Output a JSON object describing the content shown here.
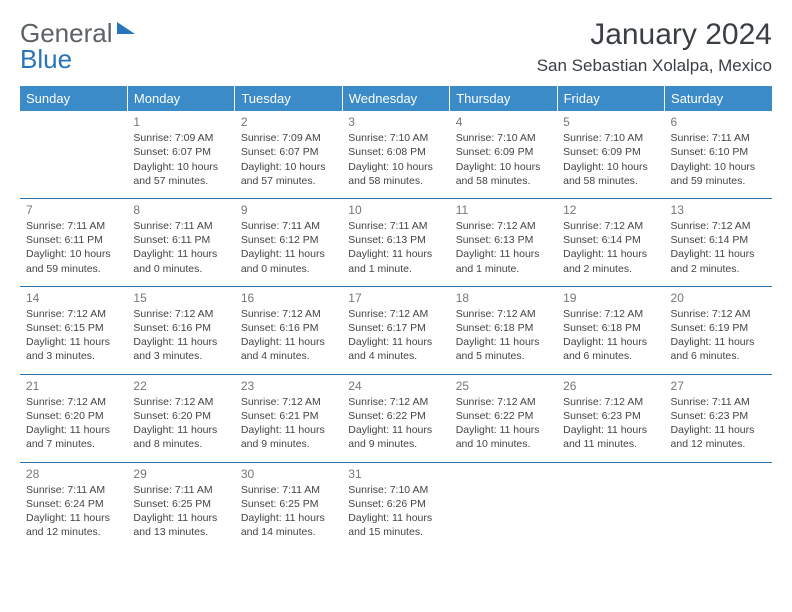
{
  "brand": {
    "part1": "General",
    "part2": "Blue"
  },
  "title": "January 2024",
  "location": "San Sebastian Xolalpa, Mexico",
  "colors": {
    "header_bg": "#3b8bc9",
    "header_text": "#ffffff",
    "rule": "#2f6fa8",
    "body_text": "#444444",
    "title_text": "#3a3f44"
  },
  "weekdays": [
    "Sunday",
    "Monday",
    "Tuesday",
    "Wednesday",
    "Thursday",
    "Friday",
    "Saturday"
  ],
  "weeks": [
    [
      null,
      {
        "d": "1",
        "sr": "7:09 AM",
        "ss": "6:07 PM",
        "dl": "10 hours and 57 minutes."
      },
      {
        "d": "2",
        "sr": "7:09 AM",
        "ss": "6:07 PM",
        "dl": "10 hours and 57 minutes."
      },
      {
        "d": "3",
        "sr": "7:10 AM",
        "ss": "6:08 PM",
        "dl": "10 hours and 58 minutes."
      },
      {
        "d": "4",
        "sr": "7:10 AM",
        "ss": "6:09 PM",
        "dl": "10 hours and 58 minutes."
      },
      {
        "d": "5",
        "sr": "7:10 AM",
        "ss": "6:09 PM",
        "dl": "10 hours and 58 minutes."
      },
      {
        "d": "6",
        "sr": "7:11 AM",
        "ss": "6:10 PM",
        "dl": "10 hours and 59 minutes."
      }
    ],
    [
      {
        "d": "7",
        "sr": "7:11 AM",
        "ss": "6:11 PM",
        "dl": "10 hours and 59 minutes."
      },
      {
        "d": "8",
        "sr": "7:11 AM",
        "ss": "6:11 PM",
        "dl": "11 hours and 0 minutes."
      },
      {
        "d": "9",
        "sr": "7:11 AM",
        "ss": "6:12 PM",
        "dl": "11 hours and 0 minutes."
      },
      {
        "d": "10",
        "sr": "7:11 AM",
        "ss": "6:13 PM",
        "dl": "11 hours and 1 minute."
      },
      {
        "d": "11",
        "sr": "7:12 AM",
        "ss": "6:13 PM",
        "dl": "11 hours and 1 minute."
      },
      {
        "d": "12",
        "sr": "7:12 AM",
        "ss": "6:14 PM",
        "dl": "11 hours and 2 minutes."
      },
      {
        "d": "13",
        "sr": "7:12 AM",
        "ss": "6:14 PM",
        "dl": "11 hours and 2 minutes."
      }
    ],
    [
      {
        "d": "14",
        "sr": "7:12 AM",
        "ss": "6:15 PM",
        "dl": "11 hours and 3 minutes."
      },
      {
        "d": "15",
        "sr": "7:12 AM",
        "ss": "6:16 PM",
        "dl": "11 hours and 3 minutes."
      },
      {
        "d": "16",
        "sr": "7:12 AM",
        "ss": "6:16 PM",
        "dl": "11 hours and 4 minutes."
      },
      {
        "d": "17",
        "sr": "7:12 AM",
        "ss": "6:17 PM",
        "dl": "11 hours and 4 minutes."
      },
      {
        "d": "18",
        "sr": "7:12 AM",
        "ss": "6:18 PM",
        "dl": "11 hours and 5 minutes."
      },
      {
        "d": "19",
        "sr": "7:12 AM",
        "ss": "6:18 PM",
        "dl": "11 hours and 6 minutes."
      },
      {
        "d": "20",
        "sr": "7:12 AM",
        "ss": "6:19 PM",
        "dl": "11 hours and 6 minutes."
      }
    ],
    [
      {
        "d": "21",
        "sr": "7:12 AM",
        "ss": "6:20 PM",
        "dl": "11 hours and 7 minutes."
      },
      {
        "d": "22",
        "sr": "7:12 AM",
        "ss": "6:20 PM",
        "dl": "11 hours and 8 minutes."
      },
      {
        "d": "23",
        "sr": "7:12 AM",
        "ss": "6:21 PM",
        "dl": "11 hours and 9 minutes."
      },
      {
        "d": "24",
        "sr": "7:12 AM",
        "ss": "6:22 PM",
        "dl": "11 hours and 9 minutes."
      },
      {
        "d": "25",
        "sr": "7:12 AM",
        "ss": "6:22 PM",
        "dl": "11 hours and 10 minutes."
      },
      {
        "d": "26",
        "sr": "7:12 AM",
        "ss": "6:23 PM",
        "dl": "11 hours and 11 minutes."
      },
      {
        "d": "27",
        "sr": "7:11 AM",
        "ss": "6:23 PM",
        "dl": "11 hours and 12 minutes."
      }
    ],
    [
      {
        "d": "28",
        "sr": "7:11 AM",
        "ss": "6:24 PM",
        "dl": "11 hours and 12 minutes."
      },
      {
        "d": "29",
        "sr": "7:11 AM",
        "ss": "6:25 PM",
        "dl": "11 hours and 13 minutes."
      },
      {
        "d": "30",
        "sr": "7:11 AM",
        "ss": "6:25 PM",
        "dl": "11 hours and 14 minutes."
      },
      {
        "d": "31",
        "sr": "7:10 AM",
        "ss": "6:26 PM",
        "dl": "11 hours and 15 minutes."
      },
      null,
      null,
      null
    ]
  ],
  "labels": {
    "sunrise": "Sunrise:",
    "sunset": "Sunset:",
    "daylight": "Daylight:"
  }
}
